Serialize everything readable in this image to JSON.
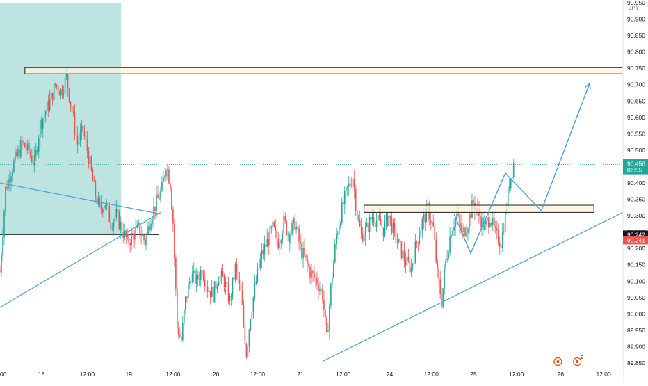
{
  "chart_data": {
    "type": "candlestick",
    "title": "",
    "xlabel": "",
    "ylabel": "",
    "currency": "JPY",
    "ylim": [
      89.85,
      90.95
    ],
    "y_ticks": [
      "89.850",
      "89.900",
      "89.950",
      "90.000",
      "90.050",
      "90.100",
      "90.150",
      "90.200",
      "90.250",
      "90.300",
      "90.350",
      "90.400",
      "90.450",
      "90.500",
      "90.550",
      "90.600",
      "90.650",
      "90.700",
      "90.750",
      "90.800",
      "90.850",
      "90.900",
      "90.950"
    ],
    "x_ticks": [
      {
        "label": "00",
        "bar": 0
      },
      {
        "label": "18",
        "bar": 60
      },
      {
        "label": "12:00",
        "bar": 126
      },
      {
        "label": "19",
        "bar": 186
      },
      {
        "label": "12:00",
        "bar": 250
      },
      {
        "label": "20",
        "bar": 312
      },
      {
        "label": "12:00",
        "bar": 372
      },
      {
        "label": "21",
        "bar": 434
      },
      {
        "label": "12:00",
        "bar": 496
      },
      {
        "label": "24",
        "bar": 563
      },
      {
        "label": "12:00",
        "bar": 623
      },
      {
        "label": "25",
        "bar": 684
      },
      {
        "label": "12:00",
        "bar": 746
      },
      {
        "label": "26",
        "bar": 810
      },
      {
        "label": "12:00",
        "bar": 872
      }
    ],
    "last_bar": 742,
    "bar_range": [
      0,
      900
    ],
    "colors": {
      "up": "#26a69a",
      "down": "#ef5350",
      "zone": "#b2dfdb",
      "box_fill": "#fdf4d9",
      "line": "#4a9fdc"
    },
    "price_path": [
      [
        0,
        90.13
      ],
      [
        8,
        90.38
      ],
      [
        16,
        90.44
      ],
      [
        24,
        90.48
      ],
      [
        32,
        90.52
      ],
      [
        40,
        90.5
      ],
      [
        50,
        90.46
      ],
      [
        58,
        90.58
      ],
      [
        66,
        90.62
      ],
      [
        74,
        90.66
      ],
      [
        80,
        90.7
      ],
      [
        88,
        90.68
      ],
      [
        96,
        90.72
      ],
      [
        104,
        90.62
      ],
      [
        112,
        90.52
      ],
      [
        120,
        90.56
      ],
      [
        128,
        90.48
      ],
      [
        136,
        90.38
      ],
      [
        144,
        90.32
      ],
      [
        152,
        90.34
      ],
      [
        160,
        90.28
      ],
      [
        168,
        90.3
      ],
      [
        176,
        90.26
      ],
      [
        184,
        90.22
      ],
      [
        192,
        90.24
      ],
      [
        200,
        90.26
      ],
      [
        210,
        90.22
      ],
      [
        218,
        90.3
      ],
      [
        226,
        90.34
      ],
      [
        234,
        90.38
      ],
      [
        240,
        90.46
      ],
      [
        246,
        90.4
      ],
      [
        250,
        90.28
      ],
      [
        256,
        89.96
      ],
      [
        262,
        89.92
      ],
      [
        268,
        90.04
      ],
      [
        276,
        90.12
      ],
      [
        284,
        90.1
      ],
      [
        292,
        90.14
      ],
      [
        300,
        90.08
      ],
      [
        308,
        90.06
      ],
      [
        316,
        90.12
      ],
      [
        324,
        90.1
      ],
      [
        332,
        90.04
      ],
      [
        340,
        90.14
      ],
      [
        348,
        90.06
      ],
      [
        356,
        89.88
      ],
      [
        362,
        90.0
      ],
      [
        370,
        90.1
      ],
      [
        378,
        90.18
      ],
      [
        386,
        90.22
      ],
      [
        394,
        90.26
      ],
      [
        402,
        90.22
      ],
      [
        410,
        90.28
      ],
      [
        418,
        90.24
      ],
      [
        426,
        90.28
      ],
      [
        434,
        90.2
      ],
      [
        442,
        90.16
      ],
      [
        450,
        90.12
      ],
      [
        458,
        90.1
      ],
      [
        466,
        90.06
      ],
      [
        472,
        89.92
      ],
      [
        478,
        90.08
      ],
      [
        486,
        90.24
      ],
      [
        494,
        90.32
      ],
      [
        502,
        90.38
      ],
      [
        510,
        90.42
      ],
      [
        516,
        90.3
      ],
      [
        522,
        90.24
      ],
      [
        530,
        90.26
      ],
      [
        538,
        90.3
      ],
      [
        546,
        90.28
      ],
      [
        554,
        90.26
      ],
      [
        562,
        90.3
      ],
      [
        570,
        90.24
      ],
      [
        578,
        90.2
      ],
      [
        586,
        90.16
      ],
      [
        594,
        90.14
      ],
      [
        602,
        90.22
      ],
      [
        610,
        90.28
      ],
      [
        618,
        90.32
      ],
      [
        626,
        90.26
      ],
      [
        632,
        90.12
      ],
      [
        638,
        90.04
      ],
      [
        644,
        90.16
      ],
      [
        652,
        90.26
      ],
      [
        660,
        90.3
      ],
      [
        668,
        90.24
      ],
      [
        676,
        90.28
      ],
      [
        684,
        90.34
      ],
      [
        692,
        90.3
      ],
      [
        700,
        90.26
      ],
      [
        708,
        90.3
      ],
      [
        716,
        90.24
      ],
      [
        724,
        90.22
      ],
      [
        730,
        90.3
      ],
      [
        736,
        90.4
      ],
      [
        742,
        90.46
      ]
    ],
    "highlight_zone": {
      "bar_start": 0,
      "bar_end": 175,
      "y_top": 90.95,
      "y_bottom": 90.242
    },
    "zone_base_line": {
      "bar_start": 0,
      "bar_end": 230,
      "y": 90.242
    },
    "zones": [
      {
        "name": "resistance",
        "bar_start": 36,
        "bar_end": 900,
        "y_high": 90.752,
        "y_low": 90.733
      },
      {
        "name": "support",
        "bar_start": 526,
        "bar_end": 858,
        "y_high": 90.332,
        "y_low": 90.31
      }
    ],
    "trendlines": [
      {
        "from": [
          0,
          90.4
        ],
        "to": [
          232,
          90.305
        ]
      },
      {
        "from": [
          0,
          90.02
        ],
        "to": [
          232,
          90.31
        ]
      },
      {
        "from": [
          466,
          89.855
        ],
        "to": [
          900,
          90.31
        ]
      }
    ],
    "projection": [
      [
        656,
        90.305
      ],
      [
        680,
        90.185
      ],
      [
        730,
        90.43
      ],
      [
        782,
        90.315
      ],
      [
        852,
        90.705
      ]
    ],
    "current_price": {
      "value": "90.456",
      "countdown": "06:55",
      "y": 90.456
    },
    "price_labels": [
      {
        "value": "90.242",
        "y": 90.242,
        "color": "#131722"
      },
      {
        "value": "90.241",
        "y": 90.225,
        "color": "#ef5350"
      }
    ],
    "markers": [
      {
        "name": "event-marker",
        "bar": 806,
        "count": ""
      },
      {
        "name": "event-marker-2",
        "bar": 834,
        "count": "2"
      }
    ]
  }
}
